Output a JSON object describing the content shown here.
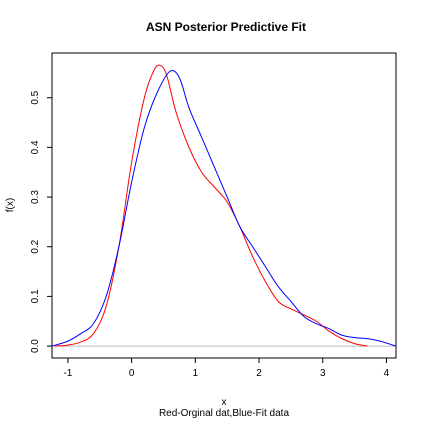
{
  "chart_data": {
    "type": "line",
    "title": "ASN Posterior Predictive Fit",
    "xlabel": "x",
    "xlabel_sub": "Red-Orginal dat,Blue-Fit data",
    "ylabel": "f(x)",
    "xlim": [
      -1.25,
      4.15
    ],
    "ylim": [
      -0.024,
      0.59
    ],
    "x_ticks": [
      -1,
      0,
      1,
      2,
      3,
      4
    ],
    "y_ticks": [
      0.0,
      0.1,
      0.2,
      0.3,
      0.4,
      0.5
    ],
    "y_tick_labels": [
      "0.0",
      "0.1",
      "0.2",
      "0.3",
      "0.4",
      "0.5"
    ],
    "baseline": {
      "y": 0,
      "color": "#bebebe"
    },
    "grid": false,
    "series": [
      {
        "color": "#ff0000",
        "x": [
          -1.2,
          -1.0,
          -0.8,
          -0.6,
          -0.4,
          -0.2,
          0.0,
          0.2,
          0.35,
          0.45,
          0.55,
          0.7,
          0.9,
          1.1,
          1.3,
          1.5,
          1.7,
          1.9,
          2.1,
          2.3,
          2.5,
          2.7,
          2.9,
          3.1,
          3.3,
          3.5,
          3.7
        ],
        "y": [
          0.0,
          0.002,
          0.008,
          0.025,
          0.08,
          0.2,
          0.37,
          0.5,
          0.555,
          0.565,
          0.545,
          0.47,
          0.4,
          0.35,
          0.32,
          0.29,
          0.24,
          0.18,
          0.13,
          0.09,
          0.075,
          0.063,
          0.05,
          0.03,
          0.015,
          0.005,
          0.0
        ]
      },
      {
        "color": "#0000ff",
        "x": [
          -1.25,
          -1.0,
          -0.8,
          -0.6,
          -0.4,
          -0.2,
          0.0,
          0.2,
          0.4,
          0.6,
          0.75,
          0.9,
          1.1,
          1.3,
          1.5,
          1.7,
          1.9,
          2.1,
          2.3,
          2.5,
          2.7,
          2.9,
          3.1,
          3.3,
          3.5,
          3.7,
          3.9,
          4.15
        ],
        "y": [
          0.0,
          0.01,
          0.025,
          0.045,
          0.1,
          0.2,
          0.33,
          0.44,
          0.51,
          0.553,
          0.54,
          0.48,
          0.42,
          0.36,
          0.3,
          0.24,
          0.2,
          0.16,
          0.12,
          0.09,
          0.06,
          0.045,
          0.035,
          0.022,
          0.017,
          0.015,
          0.01,
          0.0
        ]
      }
    ]
  }
}
